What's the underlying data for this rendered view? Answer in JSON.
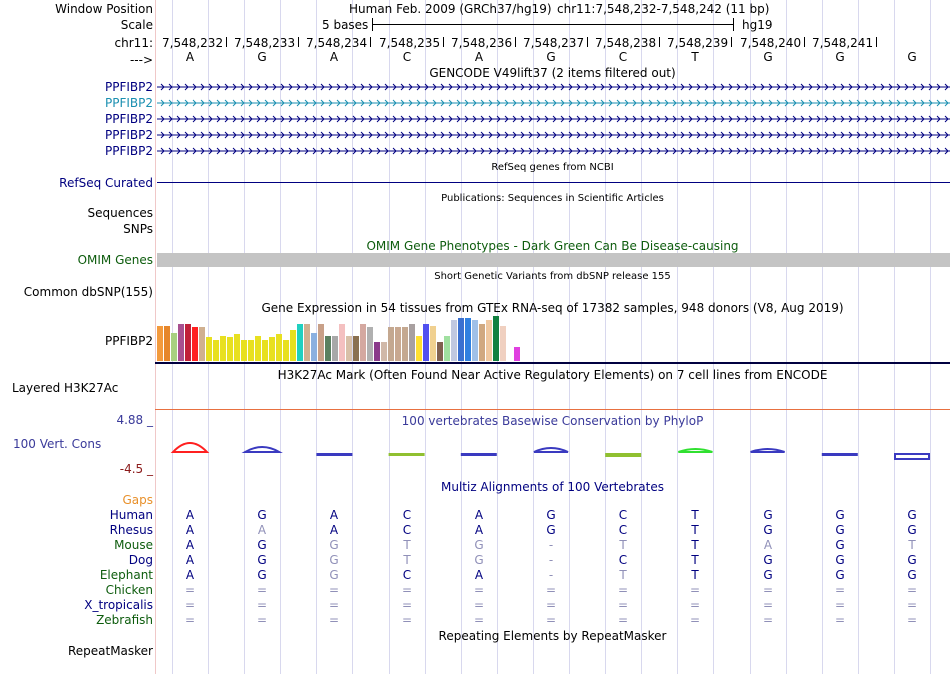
{
  "labels": {
    "window_position": "Window Position",
    "scale": "Scale",
    "chrom": "chr11:",
    "strand": "--->",
    "genes": [
      "PPFIBP2",
      "PPFIBP2",
      "PPFIBP2",
      "PPFIBP2",
      "PPFIBP2"
    ],
    "refseq": "RefSeq Curated",
    "sequences": "Sequences",
    "snps": "SNPs",
    "omim": "OMIM Genes",
    "dbsnp": "Common dbSNP(155)",
    "gtex_gene": "PPFIBP2",
    "h3k27ac": "Layered H3K27Ac",
    "cons_max": "4.88 _",
    "cons_label": "100 Vert. Cons",
    "cons_min": "-4.5 _",
    "gaps": "Gaps",
    "repeatmasker": "RepeatMasker"
  },
  "header": {
    "assembly": "Human Feb. 2009 (GRCh37/hg19)",
    "position": "chr11:7,548,232-7,548,242 (11 bp)",
    "scale_text": "5 bases",
    "scale_db": "hg19"
  },
  "coords": [
    "7,548,232",
    "7,548,233",
    "7,548,234",
    "7,548,235",
    "7,548,236",
    "7,548,237",
    "7,548,238",
    "7,548,239",
    "7,548,240",
    "7,548,241"
  ],
  "bases": [
    "A",
    "G",
    "A",
    "C",
    "A",
    "G",
    "C",
    "T",
    "G",
    "G",
    "G"
  ],
  "track_titles": {
    "gencode": "GENCODE V49lift37 (2 items filtered out)",
    "refseq": "RefSeq genes from NCBI",
    "publications": "Publications: Sequences in Scientific Articles",
    "omim": "OMIM Gene Phenotypes - Dark Green Can Be Disease-causing",
    "dbsnp": "Short Genetic Variants from dbSNP release 155",
    "gtex": "Gene Expression in 54 tissues from GTEx RNA-seq of 17382 samples, 948 donors (V8, Aug 2019)",
    "h3k27ac": "H3K27Ac Mark (Often Found Near Active Regulatory Elements) on 7 cell lines from ENCODE",
    "phylop": "100 vertebrates Basewise Conservation by PhyloP",
    "multiz": "Multiz Alignments of 100 Vertebrates",
    "repeat": "Repeating Elements by RepeatMasker"
  },
  "colors": {
    "navy": "#000080",
    "teal": "#1a8fb0",
    "dark_green": "#0d5c0d",
    "orange": "#e8902a",
    "maroon": "#8b1a1a",
    "grid": "#d8d8ee",
    "phylop_title": "#3a3a9a"
  },
  "gtex_bars": [
    {
      "c": "#f39a3c",
      "h": 0.78
    },
    {
      "c": "#e6862a",
      "h": 0.78
    },
    {
      "c": "#a8d080",
      "h": 0.62
    },
    {
      "c": "#a85090",
      "h": 0.82
    },
    {
      "c": "#c0203a",
      "h": 0.82
    },
    {
      "c": "#ff2020",
      "h": 0.75
    },
    {
      "c": "#d0b090",
      "h": 0.76
    },
    {
      "c": "#e8e020",
      "h": 0.53
    },
    {
      "c": "#e8e020",
      "h": 0.47
    },
    {
      "c": "#e8e020",
      "h": 0.55
    },
    {
      "c": "#e8e020",
      "h": 0.53
    },
    {
      "c": "#e8e020",
      "h": 0.6
    },
    {
      "c": "#e8e020",
      "h": 0.47
    },
    {
      "c": "#e8e020",
      "h": 0.47
    },
    {
      "c": "#e8e020",
      "h": 0.55
    },
    {
      "c": "#e8e020",
      "h": 0.47
    },
    {
      "c": "#e8e020",
      "h": 0.53
    },
    {
      "c": "#e8e020",
      "h": 0.6
    },
    {
      "c": "#e8e020",
      "h": 0.47
    },
    {
      "c": "#e8e020",
      "h": 0.7
    },
    {
      "c": "#20d0c0",
      "h": 0.82
    },
    {
      "c": "#d0b090",
      "h": 0.82
    },
    {
      "c": "#8ab0e0",
      "h": 0.62
    },
    {
      "c": "#c8a088",
      "h": 0.82
    },
    {
      "c": "#5a8060",
      "h": 0.55
    },
    {
      "c": "#a8a8a8",
      "h": 0.55
    },
    {
      "c": "#f4c0c0",
      "h": 0.82
    },
    {
      "c": "#d8c0a8",
      "h": 0.55
    },
    {
      "c": "#8a7050",
      "h": 0.55
    },
    {
      "c": "#d4a8a0",
      "h": 0.82
    },
    {
      "c": "#b0b0b0",
      "h": 0.76
    },
    {
      "c": "#8a3a8a",
      "h": 0.42
    },
    {
      "c": "#d0b8a8",
      "h": 0.42
    },
    {
      "c": "#c4a890",
      "h": 0.75
    },
    {
      "c": "#c8a890",
      "h": 0.75
    },
    {
      "c": "#c4a890",
      "h": 0.75
    },
    {
      "c": "#a8a0a0",
      "h": 0.82
    },
    {
      "c": "#ffe030",
      "h": 0.55
    },
    {
      "c": "#5050f0",
      "h": 0.82
    },
    {
      "c": "#f0d090",
      "h": 0.78
    },
    {
      "c": "#806050",
      "h": 0.42
    },
    {
      "c": "#a0e0a0",
      "h": 0.55
    },
    {
      "c": "#c0c8e0",
      "h": 0.9
    },
    {
      "c": "#3a70d0",
      "h": 0.96
    },
    {
      "c": "#3080e0",
      "h": 0.96
    },
    {
      "c": "#a0c0e8",
      "h": 0.9
    },
    {
      "c": "#d0a880",
      "h": 0.82
    },
    {
      "c": "#f0c8a0",
      "h": 0.9
    },
    {
      "c": "#108040",
      "h": 1.0
    },
    {
      "c": "#f0d0c0",
      "h": 0.78
    },
    {
      "c": "#ffffff",
      "h": 0.0
    },
    {
      "c": "#e040e0",
      "h": 0.3
    }
  ],
  "phylop": [
    {
      "c": "#ff2020",
      "dir": "up",
      "w": 0.9
    },
    {
      "c": "#3a3ac0",
      "dir": "up",
      "w": 0.45
    },
    {
      "c": "#3a3ac0",
      "dir": "down",
      "w": 0.08
    },
    {
      "c": "#90c030",
      "dir": "down",
      "w": 0.06
    },
    {
      "c": "#3a3ac0",
      "dir": "down",
      "w": 0.05
    },
    {
      "c": "#3a3ac0",
      "dir": "up",
      "w": 0.35
    },
    {
      "c": "#90c030",
      "dir": "down",
      "w": 0.18
    },
    {
      "c": "#30e030",
      "dir": "up",
      "w": 0.25
    },
    {
      "c": "#3a3ac0",
      "dir": "up",
      "w": 0.3
    },
    {
      "c": "#3a3ac0",
      "dir": "down",
      "w": 0.12
    },
    {
      "c": "#3a3ac0",
      "dir": "down",
      "w": 0.5
    }
  ],
  "species": [
    {
      "name": "Human",
      "color": "#000080",
      "bases": [
        "A",
        "G",
        "A",
        "C",
        "A",
        "G",
        "C",
        "T",
        "G",
        "G",
        "G"
      ],
      "faded": []
    },
    {
      "name": "Rhesus",
      "color": "#000080",
      "bases": [
        "A",
        "A",
        "A",
        "C",
        "A",
        "G",
        "C",
        "T",
        "G",
        "G",
        "G"
      ],
      "faded": [
        1
      ]
    },
    {
      "name": "Mouse",
      "color": "#0d5c0d",
      "bases": [
        "A",
        "G",
        "G",
        "T",
        "G",
        "-",
        "T",
        "T",
        "A",
        "G",
        "T"
      ],
      "faded": [
        2,
        3,
        4,
        5,
        6,
        8,
        10
      ]
    },
    {
      "name": "Dog",
      "color": "#000080",
      "bases": [
        "A",
        "G",
        "G",
        "T",
        "G",
        "-",
        "C",
        "T",
        "G",
        "G",
        "G"
      ],
      "faded": [
        2,
        3,
        4,
        5
      ]
    },
    {
      "name": "Elephant",
      "color": "#0d5c0d",
      "bases": [
        "A",
        "G",
        "G",
        "C",
        "A",
        "-",
        "T",
        "T",
        "G",
        "G",
        "G"
      ],
      "faded": [
        2,
        5,
        6
      ]
    },
    {
      "name": "Chicken",
      "color": "#0d5c0d",
      "bases": [
        "=",
        "=",
        "=",
        "=",
        "=",
        "=",
        "=",
        "=",
        "=",
        "=",
        "="
      ],
      "faded": [
        0,
        1,
        2,
        3,
        4,
        5,
        6,
        7,
        8,
        9,
        10
      ]
    },
    {
      "name": "X_tropicalis",
      "color": "#000080",
      "bases": [
        "=",
        "=",
        "=",
        "=",
        "=",
        "=",
        "=",
        "=",
        "=",
        "=",
        "="
      ],
      "faded": [
        0,
        1,
        2,
        3,
        4,
        5,
        6,
        7,
        8,
        9,
        10
      ]
    },
    {
      "name": "Zebrafish",
      "color": "#0d5c0d",
      "bases": [
        "=",
        "=",
        "=",
        "=",
        "=",
        "=",
        "=",
        "=",
        "=",
        "=",
        "="
      ],
      "faded": [
        0,
        1,
        2,
        3,
        4,
        5,
        6,
        7,
        8,
        9,
        10
      ]
    }
  ]
}
